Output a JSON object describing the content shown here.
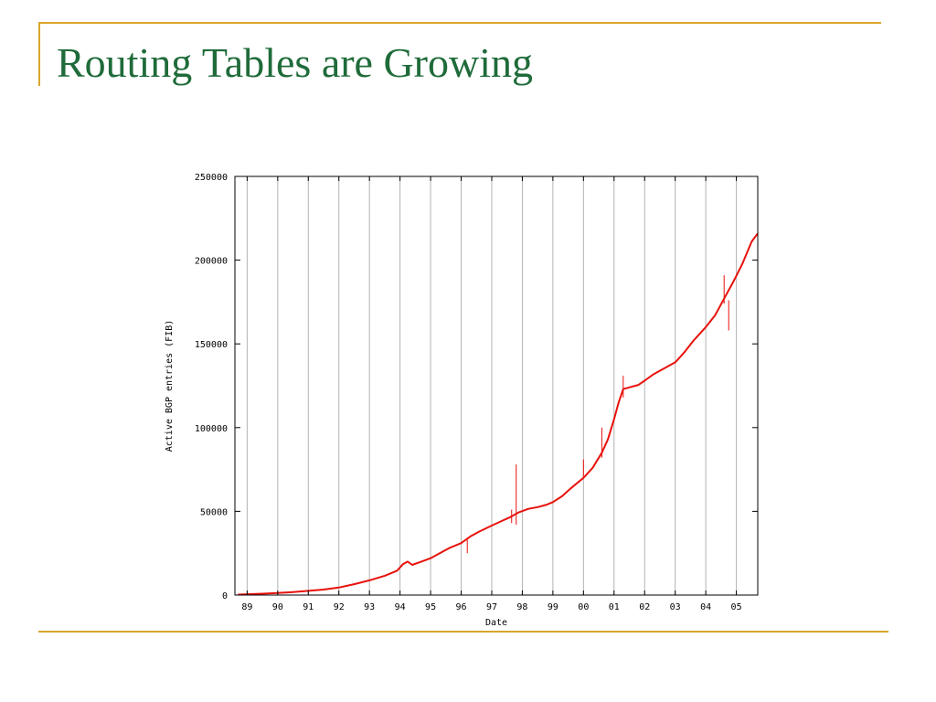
{
  "slide": {
    "title": "Routing Tables are Growing",
    "accent_color": "#d9a52b",
    "title_color": "#1f6b3a"
  },
  "chart_data": {
    "type": "line",
    "xlabel": "Date",
    "ylabel": "Active BGP entries (FIB)",
    "x_unit": "year",
    "xlim": [
      1988.6,
      2005.7
    ],
    "ylim": [
      0,
      250000
    ],
    "x_ticks": [
      {
        "x": 1989,
        "label": "89"
      },
      {
        "x": 1990,
        "label": "90"
      },
      {
        "x": 1991,
        "label": "91"
      },
      {
        "x": 1992,
        "label": "92"
      },
      {
        "x": 1993,
        "label": "93"
      },
      {
        "x": 1994,
        "label": "94"
      },
      {
        "x": 1995,
        "label": "95"
      },
      {
        "x": 1996,
        "label": "96"
      },
      {
        "x": 1997,
        "label": "97"
      },
      {
        "x": 1998,
        "label": "98"
      },
      {
        "x": 1999,
        "label": "99"
      },
      {
        "x": 2000,
        "label": "00"
      },
      {
        "x": 2001,
        "label": "01"
      },
      {
        "x": 2002,
        "label": "02"
      },
      {
        "x": 2003,
        "label": "03"
      },
      {
        "x": 2004,
        "label": "04"
      },
      {
        "x": 2005,
        "label": "05"
      }
    ],
    "y_ticks": [
      0,
      50000,
      100000,
      150000,
      200000,
      250000
    ],
    "grid": {
      "vertical": true,
      "horizontal": false
    },
    "series": [
      {
        "color": "#e8120c",
        "x": [
          1988.7,
          1989.0,
          1989.5,
          1990.0,
          1990.5,
          1991.0,
          1991.5,
          1992.0,
          1992.5,
          1993.0,
          1993.5,
          1993.9,
          1994.1,
          1994.25,
          1994.4,
          1994.7,
          1995.0,
          1995.3,
          1995.6,
          1996.0,
          1996.3,
          1996.6,
          1997.0,
          1997.3,
          1997.6,
          1997.9,
          1998.2,
          1998.5,
          1998.8,
          1999.0,
          1999.3,
          1999.6,
          2000.0,
          2000.3,
          2000.6,
          2000.8,
          2001.0,
          2001.15,
          2001.3,
          2001.5,
          2001.8,
          2002.0,
          2002.3,
          2002.6,
          2003.0,
          2003.3,
          2003.6,
          2004.0,
          2004.3,
          2004.6,
          2004.9,
          2005.2,
          2005.5,
          2005.7
        ],
        "values": [
          300,
          500,
          800,
          1200,
          1800,
          2500,
          3300,
          4500,
          6500,
          8800,
          11500,
          14500,
          18500,
          20000,
          18000,
          20000,
          22000,
          25000,
          28000,
          31000,
          35000,
          38000,
          41500,
          44000,
          46500,
          49500,
          51500,
          52500,
          54000,
          55500,
          59000,
          64000,
          70000,
          76000,
          85000,
          93000,
          105000,
          115000,
          123000,
          124000,
          125500,
          128000,
          132000,
          135000,
          139000,
          145000,
          152000,
          160000,
          167000,
          177000,
          187000,
          198000,
          211000,
          216000
        ]
      }
    ],
    "spikes": [
      {
        "x": 1996.2,
        "values": [
          25000,
          33000
        ]
      },
      {
        "x": 1997.65,
        "values": [
          43000,
          51000
        ]
      },
      {
        "x": 1997.8,
        "values": [
          42000,
          78000
        ]
      },
      {
        "x": 2000.0,
        "values": [
          70000,
          81000
        ]
      },
      {
        "x": 2000.6,
        "values": [
          82000,
          100000
        ]
      },
      {
        "x": 2001.3,
        "values": [
          118000,
          131000
        ]
      },
      {
        "x": 2004.6,
        "values": [
          174000,
          191000
        ]
      },
      {
        "x": 2004.75,
        "values": [
          158000,
          176000
        ]
      }
    ]
  }
}
